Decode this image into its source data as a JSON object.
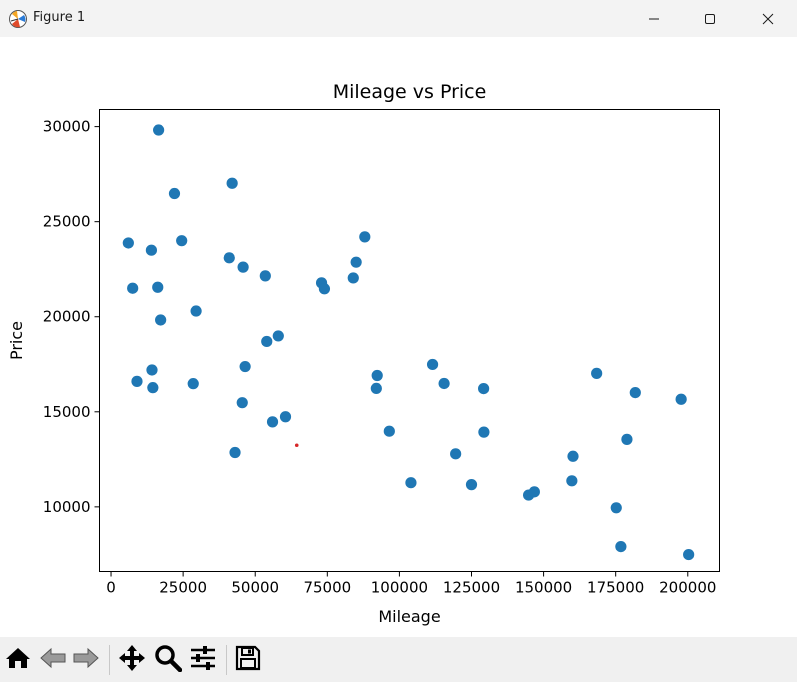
{
  "window": {
    "title": "Figure 1"
  },
  "titlebar_buttons": [
    "minimize-icon",
    "maximize-icon",
    "close-icon"
  ],
  "toolbar": {
    "buttons": [
      "home-icon",
      "back-icon",
      "forward-icon",
      "pan-icon",
      "zoom-icon",
      "configure-subplots-icon",
      "save-icon"
    ]
  },
  "colors": {
    "points": "#1f77b4",
    "highlight": "#d62728",
    "axes": "#000000"
  },
  "chart_data": {
    "type": "scatter",
    "title": "Mileage vs Price",
    "xlabel": "Mileage",
    "ylabel": "Price",
    "xlim": [
      -4000,
      211000
    ],
    "ylim": [
      6600,
      30900
    ],
    "xticks": [
      0,
      25000,
      50000,
      75000,
      100000,
      125000,
      150000,
      175000,
      200000
    ],
    "yticks": [
      10000,
      15000,
      20000,
      25000,
      30000
    ],
    "grid": false,
    "series": [
      {
        "color": "#1f77b4",
        "points": [
          [
            6000,
            23880
          ],
          [
            7500,
            21500
          ],
          [
            9000,
            16600
          ],
          [
            14000,
            23500
          ],
          [
            14200,
            17200
          ],
          [
            14500,
            16270
          ],
          [
            16200,
            21550
          ],
          [
            16500,
            29820
          ],
          [
            17200,
            19830
          ],
          [
            22000,
            26480
          ],
          [
            24500,
            24000
          ],
          [
            28500,
            16480
          ],
          [
            29500,
            20300
          ],
          [
            41000,
            23100
          ],
          [
            42000,
            27020
          ],
          [
            43000,
            12860
          ],
          [
            45500,
            15480
          ],
          [
            45800,
            22610
          ],
          [
            46500,
            17380
          ],
          [
            53500,
            22150
          ],
          [
            54000,
            18700
          ],
          [
            56000,
            14470
          ],
          [
            58000,
            18990
          ],
          [
            60500,
            14740
          ],
          [
            73000,
            21780
          ],
          [
            74000,
            21470
          ],
          [
            84000,
            22040
          ],
          [
            85000,
            22870
          ],
          [
            88000,
            24200
          ],
          [
            92000,
            16230
          ],
          [
            92300,
            16910
          ],
          [
            96500,
            13980
          ],
          [
            104000,
            11270
          ],
          [
            111500,
            17490
          ],
          [
            115500,
            16490
          ],
          [
            119500,
            12790
          ],
          [
            125000,
            11170
          ],
          [
            129200,
            16220
          ],
          [
            129300,
            13930
          ],
          [
            144800,
            10620
          ],
          [
            146800,
            10790
          ],
          [
            159800,
            11370
          ],
          [
            160200,
            12660
          ],
          [
            168400,
            17020
          ],
          [
            175200,
            9950
          ],
          [
            176800,
            7910
          ],
          [
            178900,
            13550
          ],
          [
            181800,
            16010
          ],
          [
            197700,
            15660
          ],
          [
            200300,
            7490
          ]
        ]
      },
      {
        "color": "#d62728",
        "points": [
          [
            64400,
            13240
          ]
        ]
      }
    ]
  }
}
